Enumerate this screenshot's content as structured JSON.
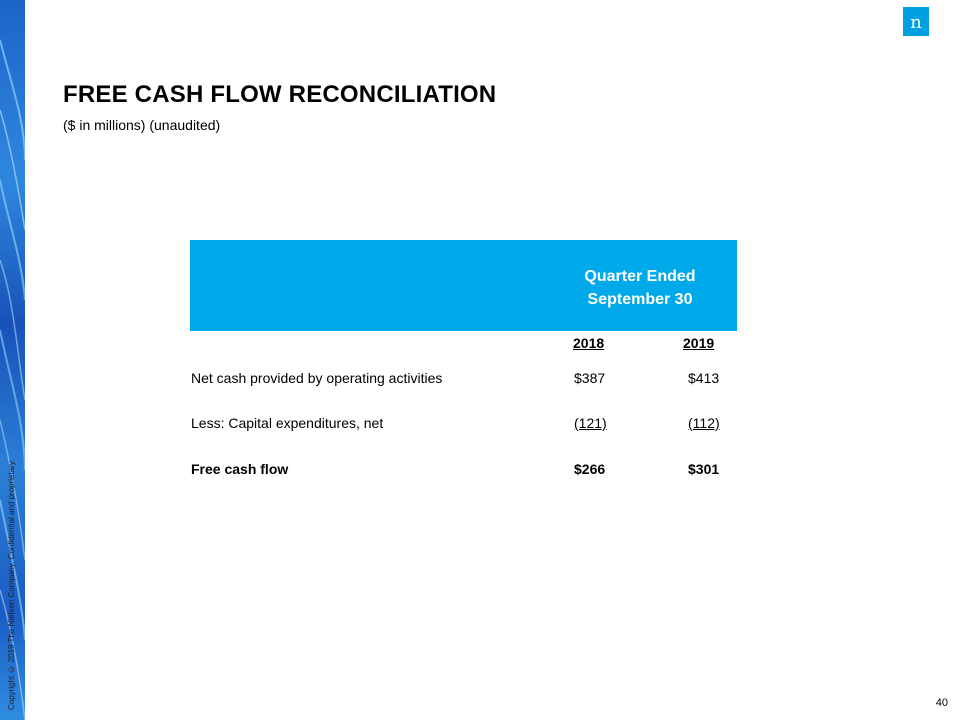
{
  "slide": {
    "title": "FREE CASH FLOW RECONCILIATION",
    "subtitle": "($ in millions) (unaudited)",
    "page_number": "40",
    "copyright": "Copyright © 2019 The Nielsen Company. Confidential and proprietary.",
    "logo_letter": "n"
  },
  "table": {
    "header_line1": "Quarter Ended",
    "header_line2": "September 30",
    "columns": [
      "2018",
      "2019"
    ],
    "rows": [
      {
        "label": "Net cash provided by operating activities",
        "v2018": "$387",
        "v2019": "$413"
      },
      {
        "label": "Less: Capital expenditures, net",
        "v2018": "(121)",
        "v2019": "(112)"
      },
      {
        "label": "Free cash flow",
        "v2018": "$266",
        "v2019": "$301"
      }
    ]
  },
  "colors": {
    "header_band": "#00aaea",
    "logo": "#00a0e3",
    "side_strip": "#1d64c9"
  }
}
